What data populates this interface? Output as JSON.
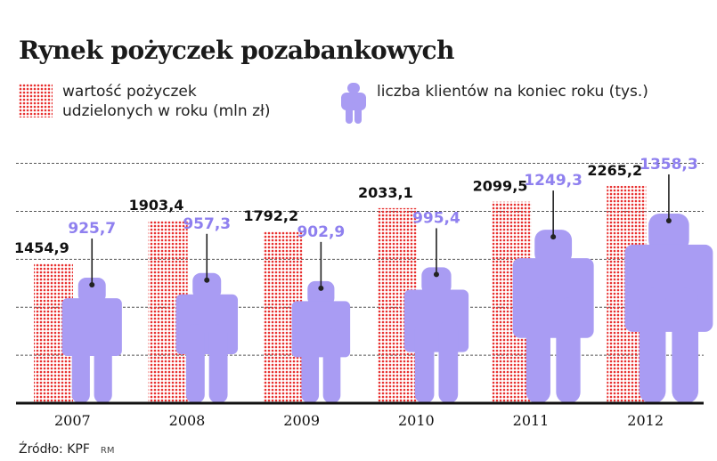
{
  "title": "Rynek pożyczek pozabankowych",
  "legend": {
    "loans_label_line1": "wartość pożyczek",
    "loans_label_line2": "udzielonych w roku (mln zł)",
    "clients_label": "liczba klientów na koniec roku (tys.)"
  },
  "source": "Źródło: KPF",
  "source_tag": "RM",
  "colors": {
    "loans": "#e8302f",
    "clients": "#a99cf3",
    "client_labels": "#8f80ef",
    "loan_labels": "#111111"
  },
  "icons": {
    "loans_swatch": "dotted-red-square",
    "clients_swatch": "person-icon"
  },
  "chart_data": {
    "type": "bar",
    "categories": [
      "2007",
      "2008",
      "2009",
      "2010",
      "2011",
      "2012"
    ],
    "series": [
      {
        "name": "wartość pożyczek udzielonych w roku (mln zł)",
        "values": [
          1454.9,
          1903.4,
          1792.2,
          2033.1,
          2099.5,
          2265.2
        ],
        "labels": [
          "1454,9",
          "1903,4",
          "1792,2",
          "2033,1",
          "2099,5",
          "2265,2"
        ]
      },
      {
        "name": "liczba klientów na koniec roku (tys.)",
        "values": [
          925.7,
          957.3,
          902.9,
          995.4,
          1249.3,
          1358.3
        ],
        "labels": [
          "925,7",
          "957,3",
          "902,9",
          "995,4",
          "1249,3",
          "1358,3"
        ]
      }
    ],
    "ylim": [
      0,
      2700
    ],
    "grid": true,
    "legend_position": "top"
  }
}
